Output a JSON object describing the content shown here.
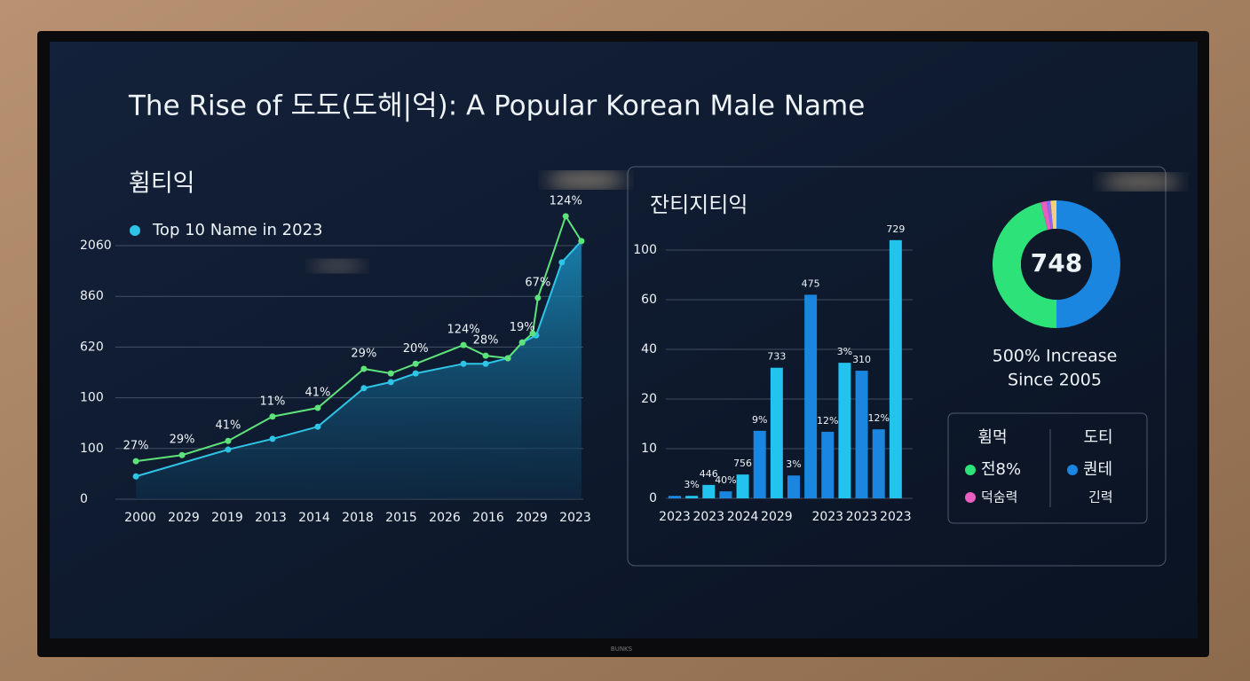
{
  "title": "The Rise of 도도(도해|억): A Popular Korean Male Name",
  "brand": "BUNKS",
  "chart_data": [
    {
      "type": "line",
      "title": "휨티익",
      "grid": true,
      "legend": "top-left",
      "xlim": [
        -0.2,
        10.2
      ],
      "xticks": [
        {
          "value": 0,
          "label": "2000"
        },
        {
          "value": 1,
          "label": "2029"
        },
        {
          "value": 2,
          "label": "2019"
        },
        {
          "value": 3,
          "label": "2013"
        },
        {
          "value": 4,
          "label": "2014"
        },
        {
          "value": 5,
          "label": "2018"
        },
        {
          "value": 6,
          "label": "2015"
        },
        {
          "value": 7,
          "label": "2026"
        },
        {
          "value": 8,
          "label": "2016"
        },
        {
          "value": 9,
          "label": "2029"
        },
        {
          "value": 10,
          "label": "2023"
        }
      ],
      "ylim": [
        0,
        5
      ],
      "yticks": [
        0,
        {
          "value": 1,
          "label": "100"
        },
        {
          "value": 2,
          "label": "100"
        },
        {
          "value": 3,
          "label": "620"
        },
        {
          "value": 4,
          "label": "860"
        },
        {
          "value": 5,
          "label": "2060"
        }
      ],
      "series": [
        {
          "color": "#5ee37a",
          "x": [
            -0.1,
            0.96,
            2.02,
            3.04,
            4.08,
            5.14,
            5.76,
            6.33,
            7.43,
            7.94,
            8.45,
            8.78,
            9.02,
            9.14,
            9.78,
            10.14
          ],
          "values": [
            0.75,
            0.87,
            1.15,
            1.63,
            1.8,
            2.57,
            2.48,
            2.67,
            3.04,
            2.83,
            2.78,
            3.09,
            3.27,
            3.97,
            5.58,
            5.09
          ],
          "annotations": [
            "27%",
            "29%",
            "41%",
            "11%",
            "41%",
            "29%",
            null,
            "20%",
            "124%",
            "28%",
            null,
            "19%",
            null,
            "67%",
            "124%",
            null
          ]
        },
        {
          "name": "Top 10 Name in 2023",
          "color": "#2ec4e6",
          "area": true,
          "x": [
            -0.1,
            2.02,
            3.04,
            4.08,
            5.14,
            5.76,
            6.33,
            7.43,
            7.94,
            8.45,
            8.78,
            9.1,
            9.69,
            10.14
          ],
          "values": [
            0.45,
            0.98,
            1.19,
            1.43,
            2.19,
            2.31,
            2.48,
            2.67,
            2.67,
            2.78,
            3.09,
            3.23,
            4.67,
            5.09
          ]
        }
      ]
    },
    {
      "type": "bar",
      "title": "잔티지티익",
      "grid": true,
      "categories": [
        "2023",
        null,
        "2023",
        null,
        "2024",
        null,
        "2029",
        null,
        null,
        "2023",
        null,
        "2023",
        null,
        "2023"
      ],
      "values": [
        0.05,
        0.05,
        0.27,
        0.14,
        0.48,
        1.36,
        2.63,
        0.46,
        4.1,
        1.34,
        2.73,
        2.57,
        1.39,
        5.2
      ],
      "annotations": [
        null,
        "3%",
        "446",
        "40%",
        "756",
        "9%",
        "733",
        "3%",
        "475",
        "12%",
        "3%",
        "310",
        "12%",
        "729"
      ],
      "colors": [
        "#1a86e0",
        "#22c3ee",
        "#22c3ee",
        "#1a86e0",
        "#22c3ee",
        "#1a86e0",
        "#22c3ee",
        "#1a86e0",
        "#1a86e0",
        "#1a86e0",
        "#22c3ee",
        "#1a86e0",
        "#1a86e0",
        "#22c3ee"
      ],
      "ylim": [
        0,
        5
      ],
      "yticks": [
        0,
        {
          "value": 1,
          "label": "10"
        },
        {
          "value": 2,
          "label": "20"
        },
        {
          "value": 3,
          "label": "40"
        },
        {
          "value": 4,
          "label": "60"
        },
        {
          "value": 5,
          "label": "100"
        }
      ]
    },
    {
      "type": "pie",
      "center_label": "748",
      "caption": [
        "500% Increase",
        "Since 2005"
      ],
      "values": [
        50,
        46,
        1.5,
        1,
        1.5
      ],
      "colors": [
        "#1a86e0",
        "#2ee27a",
        "#e85fc0",
        "#8a6cf0",
        "#f0d080"
      ]
    }
  ],
  "legend_panel": {
    "columns": [
      {
        "heading": "휨먹",
        "items": [
          {
            "text": "전8%",
            "color": "#2ee27a"
          },
          {
            "text": "덕숨력",
            "color": "#e85fc0"
          }
        ]
      },
      {
        "heading": "도티",
        "items": [
          {
            "text": "퀀테",
            "color": "#1a86e0"
          },
          {
            "text": "긴력"
          }
        ]
      }
    ]
  }
}
